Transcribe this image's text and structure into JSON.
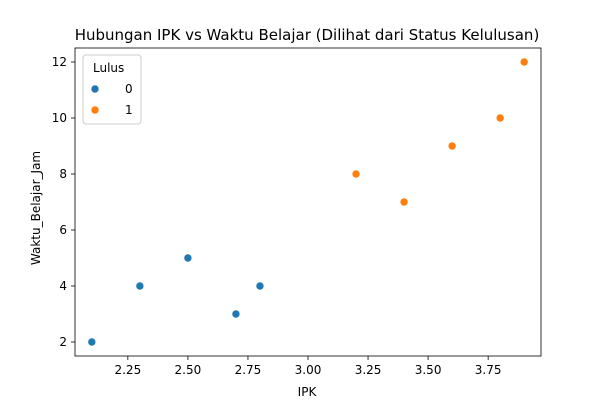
{
  "chart_data": {
    "type": "scatter",
    "title": "Hubungan IPK vs Waktu Belajar (Dilihat dari Status Kelulusan)",
    "xlabel": "IPK",
    "ylabel": "Waktu_Belajar_Jam",
    "xlim": [
      2.03,
      3.97
    ],
    "ylim": [
      1.5,
      12.5
    ],
    "x_ticks": [
      2.25,
      2.5,
      2.75,
      3.0,
      3.25,
      3.5,
      3.75
    ],
    "x_tick_labels": [
      "2.25",
      "2.50",
      "2.75",
      "3.00",
      "3.25",
      "3.50",
      "3.75"
    ],
    "y_ticks": [
      2,
      4,
      6,
      8,
      10,
      12
    ],
    "y_tick_labels": [
      "2",
      "4",
      "6",
      "8",
      "10",
      "12"
    ],
    "grid": false,
    "legend": {
      "title": "Lulus",
      "placement": "top-left"
    },
    "series": [
      {
        "name": "0",
        "color": "#1f77b4",
        "points": [
          {
            "x": 2.1,
            "y": 2
          },
          {
            "x": 2.3,
            "y": 4
          },
          {
            "x": 2.5,
            "y": 5
          },
          {
            "x": 2.7,
            "y": 3
          },
          {
            "x": 2.8,
            "y": 4
          }
        ]
      },
      {
        "name": "1",
        "color": "#ff7f0e",
        "points": [
          {
            "x": 3.2,
            "y": 8
          },
          {
            "x": 3.4,
            "y": 7
          },
          {
            "x": 3.6,
            "y": 9
          },
          {
            "x": 3.8,
            "y": 10
          },
          {
            "x": 3.9,
            "y": 12
          }
        ]
      }
    ]
  }
}
